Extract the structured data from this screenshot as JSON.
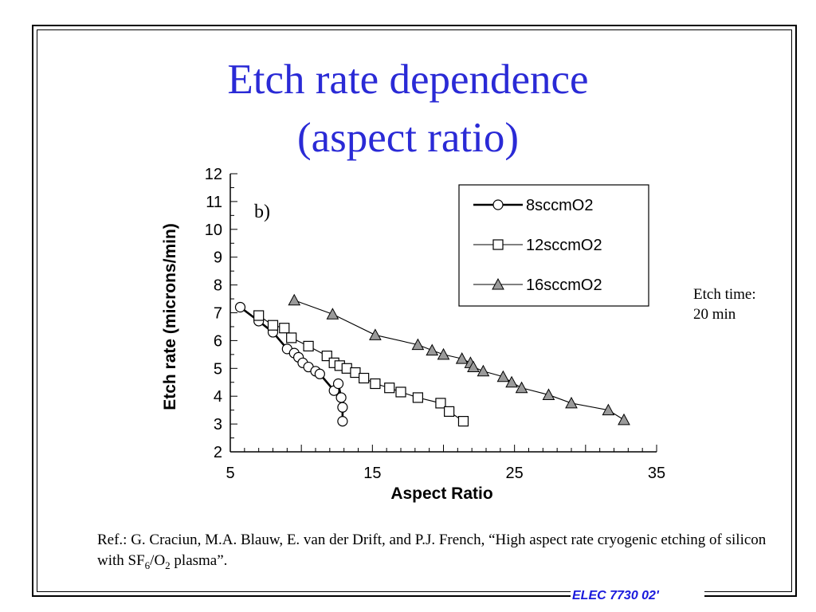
{
  "slide": {
    "title_line1": "Etch rate dependence",
    "title_line2": "(aspect ratio)",
    "side_note_line1": "Etch time:",
    "side_note_line2": "20 min",
    "ref_text_a": "Ref.: G. Craciun, M.A. Blauw, E. van der Drift, and P.J. French, “High aspect rate cryogenic etching of silicon with SF",
    "ref_sub1": "6",
    "ref_text_b": "/O",
    "ref_sub2": "2",
    "ref_text_c": " plasma”.",
    "footer": "ELEC 7730 02'",
    "title_color": "#2a2ad6",
    "footer_color": "#1a1adc"
  },
  "chart_data": {
    "type": "scatter",
    "panel_label": "b)",
    "xlabel": "Aspect Ratio",
    "ylabel": "Etch rate (microns/min)",
    "xlim": [
      5,
      35
    ],
    "ylim": [
      2,
      12
    ],
    "x_ticks": [
      5,
      15,
      25,
      35
    ],
    "y_ticks": [
      2,
      3,
      4,
      5,
      6,
      7,
      8,
      9,
      10,
      11,
      12
    ],
    "legend_position": "top-right",
    "grid": false,
    "series": [
      {
        "name": "8sccmO2",
        "marker": "circle",
        "line_width": "thick",
        "x": [
          5.7,
          7.0,
          8.0,
          9.0,
          9.5,
          9.8,
          10.1,
          10.5,
          11.0,
          11.3,
          12.3,
          12.6,
          12.8,
          12.9,
          12.9
        ],
        "y": [
          7.2,
          6.7,
          6.3,
          5.7,
          5.55,
          5.4,
          5.2,
          5.05,
          4.9,
          4.8,
          4.2,
          4.45,
          3.95,
          3.6,
          3.1
        ]
      },
      {
        "name": "12sccmO2",
        "marker": "square",
        "line_width": "thin",
        "x": [
          7.0,
          8.0,
          8.8,
          9.3,
          10.5,
          11.8,
          12.3,
          12.7,
          13.2,
          13.8,
          14.4,
          15.2,
          16.2,
          17.0,
          18.2,
          19.8,
          20.4,
          21.4
        ],
        "y": [
          6.9,
          6.55,
          6.45,
          6.1,
          5.8,
          5.45,
          5.2,
          5.1,
          5.0,
          4.85,
          4.65,
          4.45,
          4.3,
          4.15,
          3.95,
          3.75,
          3.45,
          3.1
        ]
      },
      {
        "name": "16sccmO2",
        "marker": "triangle",
        "line_width": "thin",
        "x": [
          9.5,
          12.2,
          15.2,
          18.2,
          19.2,
          20.0,
          21.3,
          21.9,
          22.1,
          22.8,
          24.2,
          24.8,
          25.5,
          27.4,
          29.0,
          31.6,
          32.7
        ],
        "y": [
          7.45,
          6.95,
          6.2,
          5.85,
          5.65,
          5.5,
          5.35,
          5.2,
          5.05,
          4.9,
          4.7,
          4.5,
          4.3,
          4.05,
          3.75,
          3.5,
          3.15
        ]
      }
    ]
  }
}
